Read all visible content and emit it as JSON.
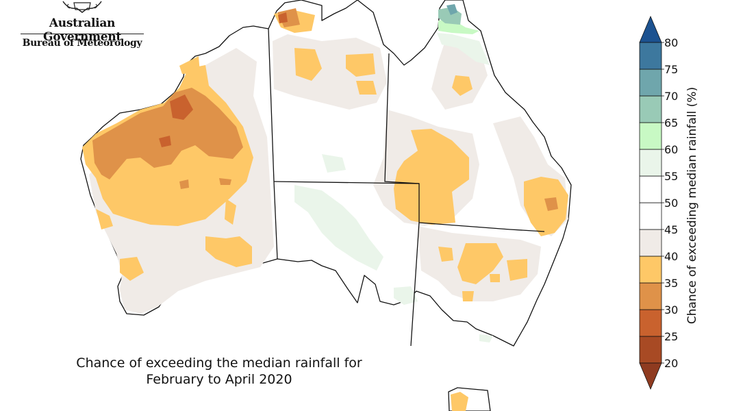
{
  "logo": {
    "line1": "Australian Government",
    "line2": "Bureau of Meteorology"
  },
  "caption": {
    "line1": "Chance of exceeding the median rainfall for",
    "line2": "February to April 2020"
  },
  "legend": {
    "label": "Chance of exceeding median rainfall (%)",
    "bins": [
      {
        "lo": 20,
        "hi": 25,
        "color": "#a84a24"
      },
      {
        "lo": 25,
        "hi": 30,
        "color": "#c9622e"
      },
      {
        "lo": 30,
        "hi": 35,
        "color": "#df9249"
      },
      {
        "lo": 35,
        "hi": 40,
        "color": "#fec867"
      },
      {
        "lo": 40,
        "hi": 45,
        "color": "#f0ebe7"
      },
      {
        "lo": 45,
        "hi": 50,
        "color": "#ffffff"
      },
      {
        "lo": 50,
        "hi": 55,
        "color": "#ffffff"
      },
      {
        "lo": 55,
        "hi": 60,
        "color": "#eaf5ea"
      },
      {
        "lo": 60,
        "hi": 65,
        "color": "#c8f9c4"
      },
      {
        "lo": 65,
        "hi": 70,
        "color": "#99cab6"
      },
      {
        "lo": 70,
        "hi": 75,
        "color": "#6fa6ac"
      },
      {
        "lo": 75,
        "hi": 80,
        "color": "#3d789e"
      }
    ],
    "ticks": [
      "20",
      "25",
      "30",
      "35",
      "40",
      "45",
      "50",
      "55",
      "60",
      "65",
      "70",
      "75",
      "80"
    ],
    "low_color": "#8f3b20",
    "high_color": "#1c5290"
  }
}
